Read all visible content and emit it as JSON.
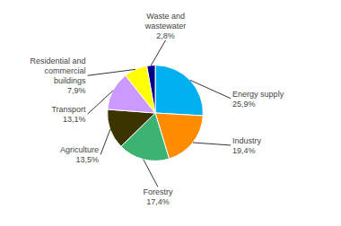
{
  "chart_data": {
    "type": "pie",
    "categories": [
      "Energy supply",
      "Industry",
      "Forestry",
      "Agriculture",
      "Transport",
      "Residential and\ncommercial\nbuildings",
      "Waste and\nwastewater"
    ],
    "values": [
      25.9,
      19.4,
      17.4,
      13.5,
      13.1,
      7.9,
      2.8
    ],
    "value_labels": [
      "25,9%",
      "19,4%",
      "17,4%",
      "13,5%",
      "13,1%",
      "7,9%",
      "2,8%"
    ],
    "colors": [
      "#00b0f0",
      "#ff8c00",
      "#3cb371",
      "#3b3300",
      "#cc99ff",
      "#ffff00",
      "#00008b"
    ],
    "data_labels": true
  }
}
